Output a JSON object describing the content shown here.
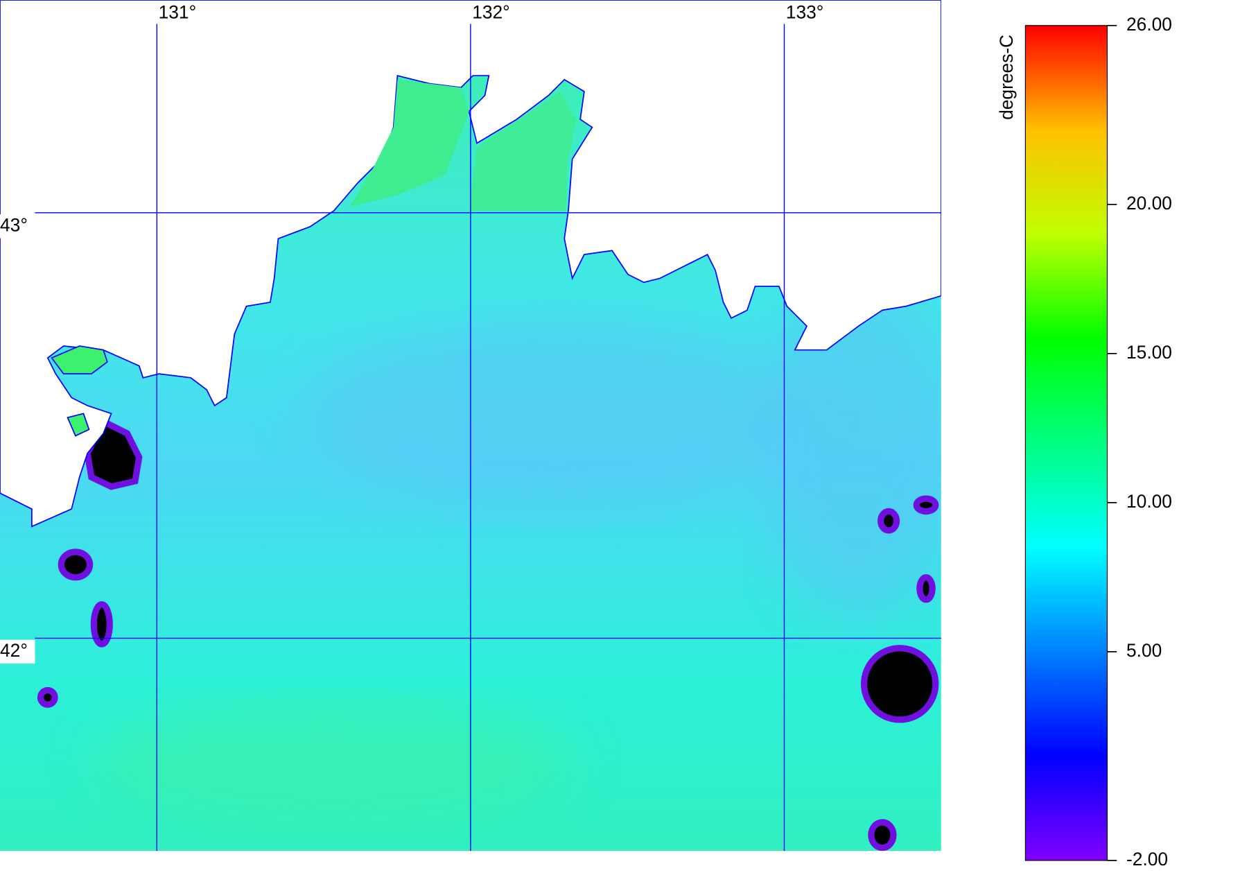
{
  "chart_data": {
    "type": "map",
    "colorbar_label": "degrees-C",
    "xlim": [
      130.5,
      133.5
    ],
    "ylim": [
      41.5,
      43.5
    ],
    "xticks": [
      {
        "value": 131,
        "label": "131°"
      },
      {
        "value": 132,
        "label": "132°"
      },
      {
        "value": 133,
        "label": "133°"
      }
    ],
    "yticks": [
      {
        "value": 43,
        "label": "43°"
      },
      {
        "value": 42,
        "label": "42°"
      }
    ],
    "grid_color": "#0000ff",
    "clim": [
      -2,
      26
    ],
    "cticks": [
      {
        "value": 26,
        "label": "26.00"
      },
      {
        "value": 20,
        "label": "20.00"
      },
      {
        "value": 15,
        "label": "15.00"
      },
      {
        "value": 10,
        "label": "10.00"
      },
      {
        "value": 5,
        "label": "5.00"
      },
      {
        "value": -2,
        "label": "-2.00"
      }
    ],
    "colormap": [
      "#8000ff",
      "#0000ff",
      "#0080ff",
      "#00ffff",
      "#00ff80",
      "#00ff00",
      "#c0ff00",
      "#ffc000",
      "#ff0000"
    ]
  }
}
